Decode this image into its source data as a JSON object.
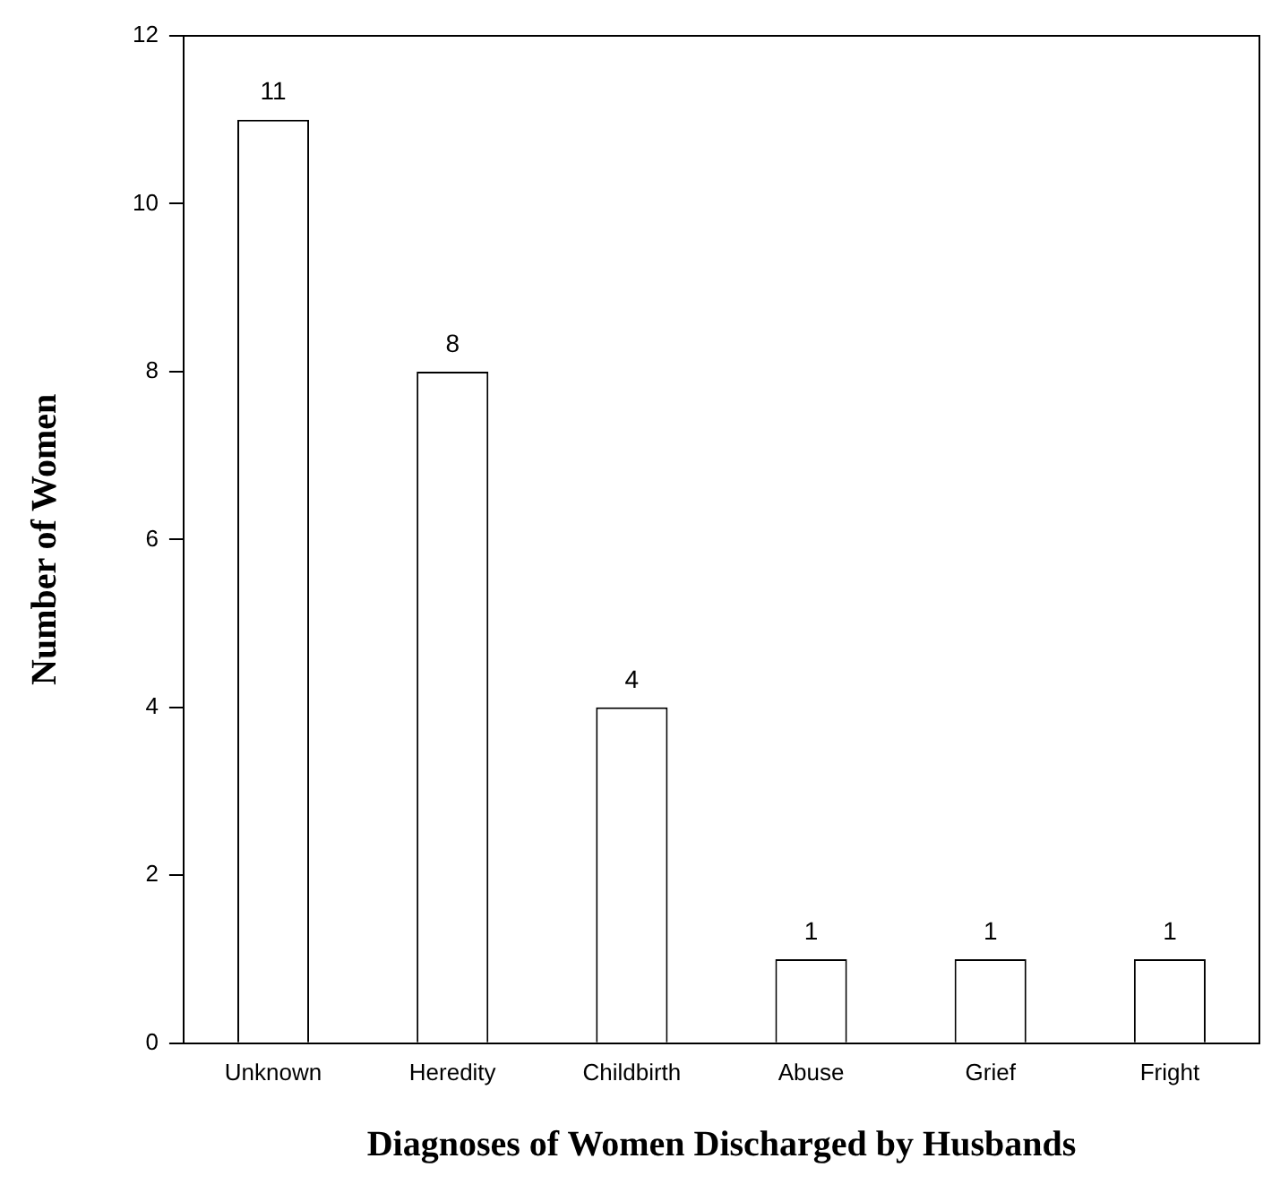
{
  "chart_data": {
    "type": "bar",
    "xlabel": "Diagnoses of Women Discharged by Husbands",
    "ylabel": "Number of Women",
    "categories": [
      "Unknown",
      "Heredity",
      "Childbirth",
      "Abuse",
      "Grief",
      "Fright"
    ],
    "values": [
      11,
      8,
      4,
      1,
      1,
      1
    ],
    "color": "#ffffff",
    "ylim": [
      0,
      12
    ],
    "yticks": [
      0,
      2,
      4,
      6,
      8,
      10,
      12
    ],
    "grid": false,
    "data_labels": true,
    "legend": false
  }
}
